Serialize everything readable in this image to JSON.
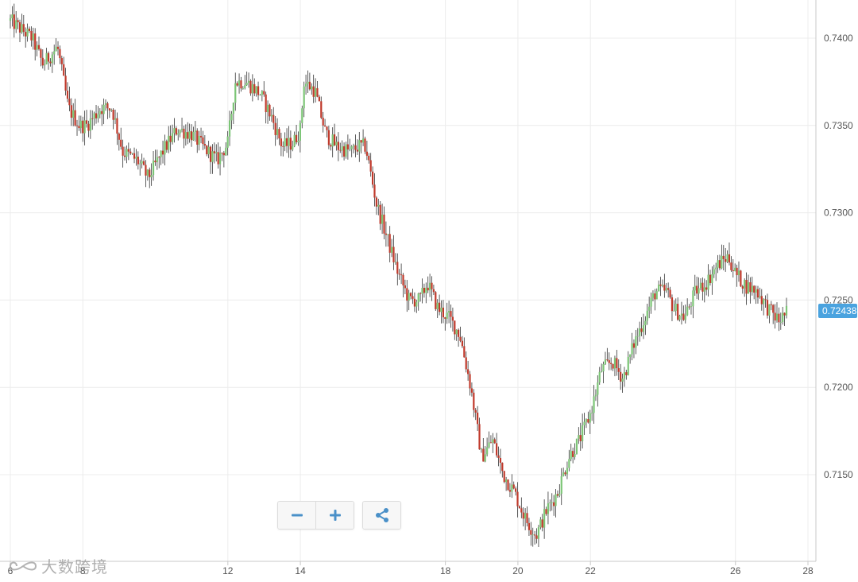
{
  "chart_data": {
    "type": "candlestick",
    "current_price_label": "0.72438",
    "current_price": 0.72438,
    "y_ticks": [
      "0.7400",
      "0.7350",
      "0.7300",
      "0.7250",
      "0.7200",
      "0.7150"
    ],
    "y_tick_values": [
      0.74,
      0.735,
      0.73,
      0.725,
      0.72,
      0.715
    ],
    "ylim": [
      0.7101,
      0.742
    ],
    "x_ticks": [
      "6",
      "8",
      "12",
      "14",
      "18",
      "20",
      "22",
      "26",
      "28"
    ],
    "xlim": [
      6,
      28
    ],
    "grid": true,
    "up_color": "#7cc576",
    "down_color": "#c0392b",
    "wick_color": "#333333",
    "accent_color": "#4aa3df",
    "close_path": [
      [
        6.0,
        0.741
      ],
      [
        6.3,
        0.7405
      ],
      [
        6.6,
        0.74
      ],
      [
        6.9,
        0.7385
      ],
      [
        7.1,
        0.739
      ],
      [
        7.3,
        0.7395
      ],
      [
        7.6,
        0.736
      ],
      [
        7.9,
        0.735
      ],
      [
        8.1,
        0.735
      ],
      [
        8.5,
        0.736
      ],
      [
        8.8,
        0.736
      ],
      [
        9.1,
        0.7335
      ],
      [
        9.5,
        0.733
      ],
      [
        9.8,
        0.732
      ],
      [
        10.2,
        0.7335
      ],
      [
        10.6,
        0.7348
      ],
      [
        11.0,
        0.7345
      ],
      [
        11.3,
        0.7338
      ],
      [
        11.7,
        0.733
      ],
      [
        12.0,
        0.734
      ],
      [
        12.2,
        0.7375
      ],
      [
        12.5,
        0.7375
      ],
      [
        12.9,
        0.7368
      ],
      [
        13.2,
        0.7355
      ],
      [
        13.5,
        0.7338
      ],
      [
        13.8,
        0.734
      ],
      [
        14.0,
        0.7348
      ],
      [
        14.1,
        0.7375
      ],
      [
        14.4,
        0.737
      ],
      [
        14.7,
        0.7345
      ],
      [
        15.0,
        0.7338
      ],
      [
        15.4,
        0.7335
      ],
      [
        15.6,
        0.7338
      ],
      [
        15.8,
        0.7338
      ],
      [
        16.1,
        0.7305
      ],
      [
        16.4,
        0.7285
      ],
      [
        16.7,
        0.7265
      ],
      [
        17.0,
        0.725
      ],
      [
        17.3,
        0.725
      ],
      [
        17.5,
        0.726
      ],
      [
        17.8,
        0.7245
      ],
      [
        18.1,
        0.724
      ],
      [
        18.4,
        0.723
      ],
      [
        18.7,
        0.72
      ],
      [
        19.0,
        0.716
      ],
      [
        19.3,
        0.717
      ],
      [
        19.6,
        0.715
      ],
      [
        19.9,
        0.714
      ],
      [
        20.2,
        0.7125
      ],
      [
        20.5,
        0.7115
      ],
      [
        20.8,
        0.713
      ],
      [
        21.1,
        0.714
      ],
      [
        21.4,
        0.716
      ],
      [
        21.7,
        0.717
      ],
      [
        22.0,
        0.7185
      ],
      [
        22.3,
        0.721
      ],
      [
        22.6,
        0.7215
      ],
      [
        22.9,
        0.7205
      ],
      [
        23.2,
        0.7225
      ],
      [
        23.5,
        0.724
      ],
      [
        23.8,
        0.7255
      ],
      [
        24.1,
        0.7255
      ],
      [
        24.3,
        0.7245
      ],
      [
        24.6,
        0.724
      ],
      [
        24.9,
        0.7255
      ],
      [
        25.2,
        0.726
      ],
      [
        25.5,
        0.727
      ],
      [
        25.8,
        0.7275
      ],
      [
        26.0,
        0.7265
      ],
      [
        26.3,
        0.7258
      ],
      [
        26.6,
        0.7255
      ],
      [
        26.9,
        0.7245
      ],
      [
        27.2,
        0.7238
      ],
      [
        27.45,
        0.72438
      ]
    ]
  },
  "toolbar": {
    "zoom_out_icon": "minus-icon",
    "zoom_in_icon": "plus-icon",
    "share_icon": "share-icon"
  },
  "watermark": {
    "text": "大数跨境",
    "logo_icon": "infinity-logo-icon"
  }
}
